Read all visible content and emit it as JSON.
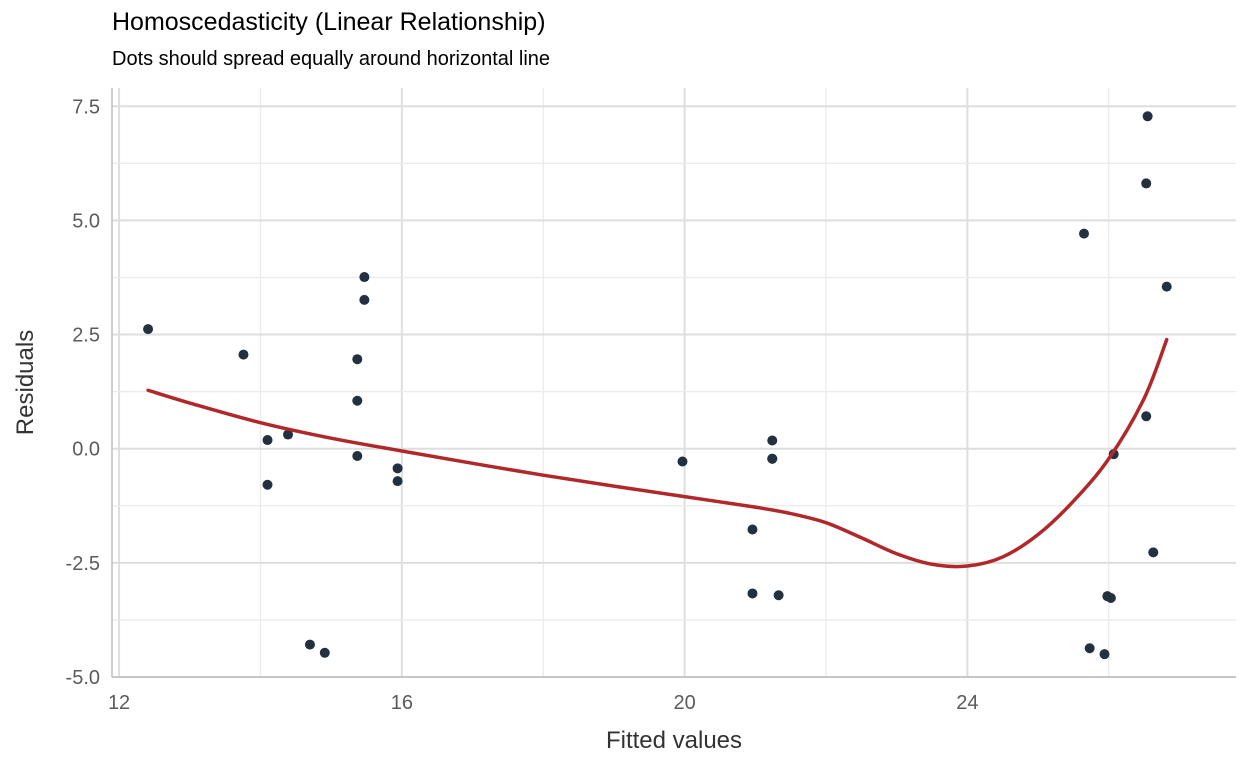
{
  "chart_data": {
    "type": "scatter",
    "title": "Homoscedasticity (Linear Relationship)",
    "subtitle": "Dots should spread equally around horizontal line",
    "xlabel": "Fitted values",
    "ylabel": "Residuals",
    "xlim": [
      11.9,
      27.8
    ],
    "ylim": [
      -5.0,
      7.9
    ],
    "x_ticks": [
      12,
      16,
      20,
      24
    ],
    "x_tick_labels": [
      "12",
      "16",
      "20",
      "24"
    ],
    "y_ticks": [
      7.5,
      5.0,
      2.5,
      0.0,
      -2.5,
      -5.0
    ],
    "y_tick_labels": [
      "7.5",
      "5.0",
      "2.5",
      "0.0",
      "-2.5",
      "-5.0"
    ],
    "grid": true,
    "point_color": "#22303f",
    "line_color": "#b0282a",
    "points": [
      {
        "x": 12.41,
        "y": 2.62
      },
      {
        "x": 13.76,
        "y": 2.06
      },
      {
        "x": 14.1,
        "y": 0.19
      },
      {
        "x": 14.1,
        "y": -0.79
      },
      {
        "x": 14.39,
        "y": 0.31
      },
      {
        "x": 14.7,
        "y": -4.29
      },
      {
        "x": 14.91,
        "y": -4.47
      },
      {
        "x": 15.37,
        "y": 1.96
      },
      {
        "x": 15.37,
        "y": 1.05
      },
      {
        "x": 15.37,
        "y": -0.16
      },
      {
        "x": 15.47,
        "y": 3.76
      },
      {
        "x": 15.47,
        "y": 3.26
      },
      {
        "x": 15.94,
        "y": -0.43
      },
      {
        "x": 15.94,
        "y": -0.71
      },
      {
        "x": 19.97,
        "y": -0.28
      },
      {
        "x": 20.96,
        "y": -1.77
      },
      {
        "x": 20.96,
        "y": -3.17
      },
      {
        "x": 21.24,
        "y": 0.18
      },
      {
        "x": 21.24,
        "y": -0.22
      },
      {
        "x": 21.24,
        "y": -0.22
      },
      {
        "x": 21.33,
        "y": -3.21
      },
      {
        "x": 25.65,
        "y": 4.71
      },
      {
        "x": 25.73,
        "y": -4.37
      },
      {
        "x": 25.94,
        "y": -4.5
      },
      {
        "x": 25.98,
        "y": -3.23
      },
      {
        "x": 26.03,
        "y": -3.27
      },
      {
        "x": 26.07,
        "y": -0.12
      },
      {
        "x": 26.53,
        "y": 5.81
      },
      {
        "x": 26.55,
        "y": 7.28
      },
      {
        "x": 26.53,
        "y": 0.71
      },
      {
        "x": 26.63,
        "y": -2.27
      },
      {
        "x": 26.82,
        "y": 3.55
      }
    ],
    "smooth_line": {
      "x": [
        12.41,
        13.0,
        14.0,
        15.0,
        16.0,
        17.0,
        18.0,
        19.0,
        20.0,
        21.0,
        21.5,
        22.0,
        22.5,
        23.0,
        23.5,
        24.0,
        24.5,
        25.0,
        25.5,
        26.0,
        26.5,
        26.82
      ],
      "y": [
        1.28,
        1.0,
        0.57,
        0.23,
        -0.05,
        -0.32,
        -0.58,
        -0.82,
        -1.05,
        -1.28,
        -1.42,
        -1.62,
        -1.95,
        -2.3,
        -2.53,
        -2.57,
        -2.37,
        -1.88,
        -1.15,
        -0.22,
        1.1,
        2.39
      ]
    }
  }
}
